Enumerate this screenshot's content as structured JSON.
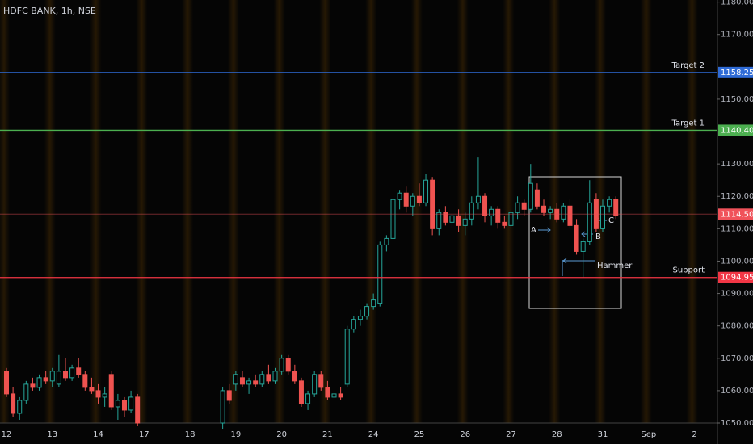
{
  "chart_data": {
    "type": "candlestick",
    "title": "HDFC BANK, 1h, NSE",
    "categories": [
      "12",
      null,
      null,
      null,
      null,
      null,
      null,
      "13",
      null,
      null,
      null,
      null,
      null,
      null,
      "14",
      null,
      null,
      null,
      null,
      null,
      null,
      "17",
      null,
      null,
      null,
      null,
      null,
      null,
      "18",
      null,
      null,
      null,
      null,
      null,
      null,
      "19",
      null,
      null,
      null,
      null,
      null,
      null,
      "20",
      null,
      null,
      null,
      null,
      null,
      null,
      "21",
      null,
      null,
      null,
      null,
      null,
      null,
      "24",
      null,
      null,
      null,
      null,
      null,
      null,
      "25",
      null,
      null,
      null,
      null,
      null,
      null,
      "26",
      null,
      null,
      null,
      null,
      null,
      null,
      "27",
      null,
      null,
      null,
      null,
      null,
      null,
      "28",
      null,
      null,
      null,
      null,
      null,
      null,
      "31",
      null,
      null,
      null,
      null,
      null,
      null,
      "Sep",
      null,
      null,
      null,
      null,
      null,
      null,
      "2",
      null,
      null,
      null
    ],
    "open": [
      1066,
      1059,
      1053,
      1057,
      1062,
      1061,
      1064,
      1063,
      1062,
      1066,
      1064,
      1067,
      1065,
      1061,
      1060,
      1058,
      1065,
      1055,
      1057,
      1054,
      1058,
      null,
      null,
      null,
      null,
      null,
      null,
      null,
      null,
      null,
      null,
      null,
      null,
      1050,
      1060,
      1062,
      1064,
      1062,
      1063,
      1062,
      1065,
      1063,
      1066,
      1070,
      1066,
      1063,
      1056,
      1059,
      1065,
      1061,
      1058,
      1059,
      1062,
      1079,
      1082,
      1083,
      1086,
      1087,
      1105,
      1107,
      1119,
      1121,
      1117,
      1120,
      1118,
      1125,
      1110,
      1115,
      1112,
      1114,
      1111,
      1113,
      1118,
      1120,
      1114,
      1116,
      1112,
      1111,
      1115,
      1118,
      1116,
      1122,
      1117,
      1115,
      1116,
      1113,
      1117,
      1111,
      1103,
      1106,
      1119,
      1110,
      1117,
      1119,
      null,
      null,
      null,
      null,
      null,
      null,
      null,
      null,
      null,
      null,
      null,
      null,
      null,
      null,
      null
    ],
    "high": [
      1067,
      1061,
      1058,
      1063,
      1064,
      1065,
      1066,
      1067,
      1071,
      1070,
      1068,
      1070,
      1066,
      1064,
      1062,
      1061,
      1066,
      1059,
      1058,
      1060,
      1059,
      null,
      null,
      null,
      null,
      null,
      null,
      null,
      null,
      null,
      null,
      null,
      null,
      1061,
      1062,
      1066,
      1066,
      1064,
      1065,
      1066,
      1068,
      1067,
      1071,
      1071,
      1068,
      1064,
      1060,
      1066,
      1066,
      1063,
      1060,
      1061,
      1080,
      1083,
      1085,
      1087,
      1090,
      1106,
      1108,
      1120,
      1122,
      1123,
      1121,
      1124,
      1127,
      1126,
      1116,
      1117,
      1115,
      1116,
      1115,
      1120,
      1132,
      1121,
      1117,
      1117,
      1114,
      1116,
      1120,
      1119,
      1130,
      1124,
      1119,
      1117,
      1118,
      1118,
      1119,
      1113,
      1107,
      1125,
      1121,
      1119,
      1120,
      1120,
      null,
      null,
      null,
      null,
      null,
      null,
      null,
      null,
      null,
      null,
      null,
      null,
      null,
      null,
      null
    ],
    "low": [
      1058,
      1052,
      1051,
      1056,
      1060,
      1060,
      1062,
      1061,
      1061,
      1063,
      1063,
      1064,
      1060,
      1059,
      1056,
      1055,
      1054,
      1051,
      1052,
      1053,
      1049,
      null,
      null,
      null,
      null,
      null,
      null,
      null,
      null,
      null,
      null,
      null,
      null,
      1048,
      1056,
      1060,
      1061,
      1059,
      1061,
      1061,
      1062,
      1062,
      1065,
      1065,
      1062,
      1055,
      1054,
      1058,
      1060,
      1057,
      1056,
      1057,
      1061,
      1078,
      1080,
      1082,
      1085,
      1086,
      1103,
      1106,
      1116,
      1115,
      1114,
      1117,
      1117,
      1108,
      1108,
      1111,
      1110,
      1109,
      1108,
      1111,
      1116,
      1112,
      1111,
      1110,
      1110,
      1110,
      1113,
      1114,
      1115,
      1116,
      1114,
      1113,
      1112,
      1112,
      1110,
      1102,
      1095,
      1105,
      1109,
      1109,
      1115,
      1113,
      null,
      null,
      null,
      null,
      null,
      null,
      null,
      null,
      null,
      null,
      null,
      null,
      null,
      null,
      null
    ],
    "close": [
      1059,
      1053,
      1057,
      1062,
      1061,
      1064,
      1063,
      1066,
      1066,
      1064,
      1067,
      1065,
      1061,
      1060,
      1058,
      1059,
      1055,
      1057,
      1054,
      1058,
      1050,
      null,
      null,
      null,
      null,
      null,
      null,
      null,
      null,
      null,
      null,
      null,
      null,
      1060,
      1057,
      1065,
      1062,
      1063,
      1062,
      1065,
      1063,
      1066,
      1070,
      1066,
      1063,
      1056,
      1059,
      1065,
      1061,
      1058,
      1059,
      1058,
      1079,
      1082,
      1083,
      1086,
      1088,
      1105,
      1107,
      1119,
      1121,
      1117,
      1120,
      1118,
      1125,
      1110,
      1115,
      1112,
      1114,
      1111,
      1113,
      1118,
      1120,
      1114,
      1116,
      1112,
      1111,
      1115,
      1118,
      1116,
      1124,
      1117,
      1115,
      1116,
      1113,
      1117,
      1111,
      1103,
      1106,
      1118,
      1110,
      1117,
      1119,
      1114,
      null,
      null,
      null,
      null,
      null,
      null,
      null,
      null,
      null,
      null,
      null,
      null,
      null,
      null,
      null
    ],
    "up_color": "#26a69a",
    "down_color": "#ef5350",
    "ylim": [
      1050,
      1180.65
    ],
    "yticks": [
      {
        "value": 1050,
        "label": "1050.00"
      },
      {
        "value": 1060,
        "label": "1060.00"
      },
      {
        "value": 1070,
        "label": "1070.00"
      },
      {
        "value": 1080,
        "label": "1080.00"
      },
      {
        "value": 1090,
        "label": "1090.00"
      },
      {
        "value": 1100,
        "label": "1100.00"
      },
      {
        "value": 1110,
        "label": "1110.00"
      },
      {
        "value": 1120,
        "label": "1120.00"
      },
      {
        "value": 1130,
        "label": "1130.00"
      },
      {
        "value": 1150,
        "label": "1150.00"
      },
      {
        "value": 1170,
        "label": "1170.00"
      },
      {
        "value": 1180,
        "label": "1180.00"
      }
    ],
    "levels": [
      {
        "name": "Target 2",
        "value": 1158.25,
        "price_label": "1158.25",
        "color": "#2f6bd6"
      },
      {
        "name": "Target 1",
        "value": 1140.4,
        "price_label": "1140.40",
        "color": "#4caf50"
      },
      {
        "value": 1114.5,
        "price_label": "1114.50",
        "color": "#f0525a",
        "dim": true
      },
      {
        "name": "Support",
        "value": 1094.95,
        "price_label": "1094.95",
        "color": "#f23645"
      }
    ],
    "annotations": [
      "A",
      "B",
      "C",
      "Hammer"
    ]
  }
}
